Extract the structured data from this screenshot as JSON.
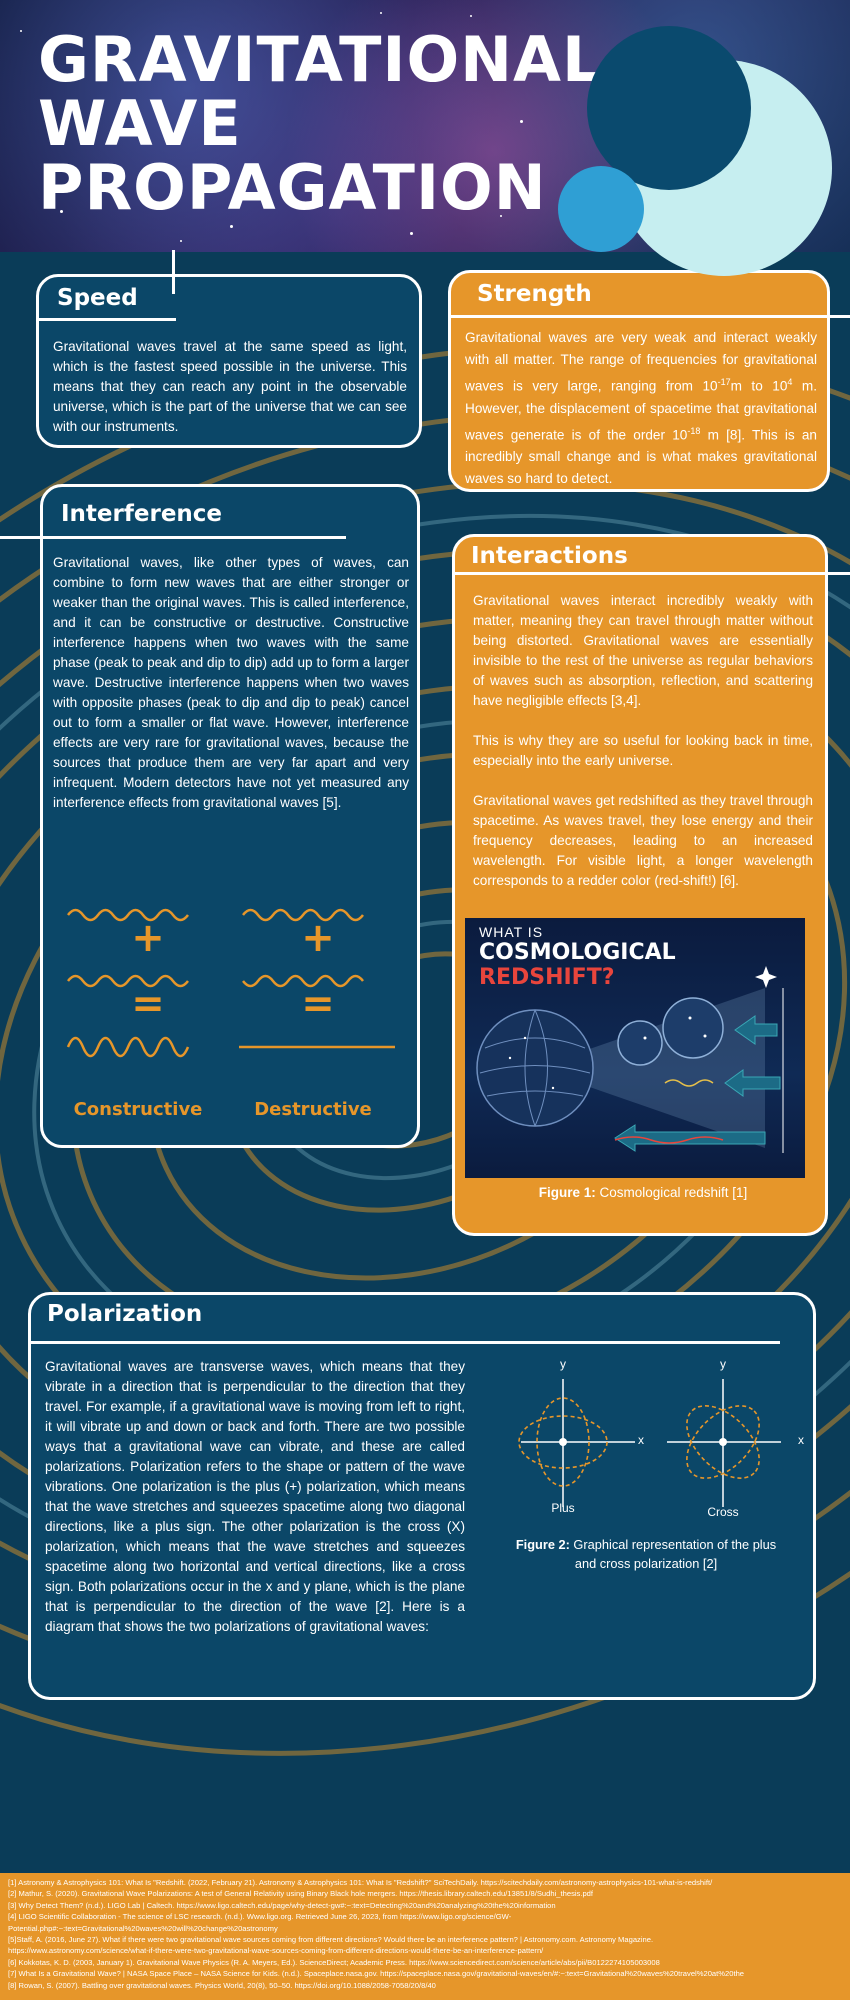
{
  "header": {
    "title_lines": [
      "GRAVITATIONAL",
      "WAVE",
      "PROPAGATION"
    ]
  },
  "colors": {
    "navy": "#0a3c58",
    "card_blue": "#0b4768",
    "orange": "#e6962a",
    "light_cyan": "#c6eef0",
    "bright_blue": "#2f9fd4",
    "swirl": "#c48a2c"
  },
  "speed": {
    "title": "Speed",
    "text": "Gravitational waves travel at the same speed as light, which is the fastest speed possible in the universe. This means that they can reach any point in the observable universe, which is the part of the universe that we can see with our instruments."
  },
  "strength": {
    "title": "Strength",
    "text_a": "Gravitational waves are very weak and interact weakly with all matter. The range of frequencies for gravitational waves is very large, ranging from 10",
    "exp_a": "-17",
    "text_b": "m to 10",
    "exp_b": "4",
    "text_c": " m. However, the displacement of spacetime that gravitational waves generate is of the order 10",
    "exp_c": "-18",
    "text_d": " m [8]. This is an incredibly small change and is what makes gravitational waves so hard to detect."
  },
  "interference": {
    "title": "Interference",
    "text": "Gravitational waves, like other types of waves, can combine to form new waves that are either stronger or weaker than the original waves. This is called interference, and it can be constructive or destructive. Constructive interference happens when two waves with the same phase (peak to peak and dip to dip) add up to form a larger wave. Destructive interference happens when two waves with opposite phases (peak to dip and dip to peak) cancel out to form a smaller or flat wave. However, interference effects are very rare for gravitational waves, because the sources that produce them are very far apart and very infrequent. Modern detectors have not yet measured any interference effects from gravitational waves [5].",
    "plus_symbol": "+",
    "equals_symbol": "=",
    "constructive_label": "Constructive",
    "destructive_label": "Destructive"
  },
  "interactions": {
    "title": "Interactions",
    "paragraphs": [
      "Gravitational waves interact incredibly weakly with matter, meaning they can travel through matter without being distorted. Gravitational waves are essentially invisible to the rest of the universe as regular behaviors of waves such as absorption, reflection, and scattering have negligible effects [3,4].",
      "This is why they are so useful for looking back in time, especially into the early universe.",
      "Gravitational waves get redshifted as they travel through spacetime. As waves travel, they lose energy and their frequency decreases, leading to an increased wavelength. For visible light, a longer wavelength corresponds to a redder color (red-shift!) [6]."
    ],
    "figure_small": "WHAT IS",
    "figure_big_a": "COSMOLOGICAL ",
    "figure_big_b": "REDSHIFT?",
    "figure_label": "Figure 1:",
    "figure_caption": " Cosmological redshift [1]"
  },
  "polarization": {
    "title": "Polarization",
    "text": "Gravitational waves are transverse waves, which means that they vibrate in a direction that is perpendicular to the direction that they travel. For example, if a gravitational wave is moving from left to right, it will vibrate up and down or back and forth. There are two possible ways that a gravitational wave can vibrate, and these are called polarizations. Polarization refers to the shape or pattern of the wave vibrations. One polarization is the plus (+) polarization, which means that the wave stretches and squeezes spacetime along two diagonal directions, like a plus sign. The other polarization is the cross (X) polarization, which means that the wave stretches and squeezes spacetime along two horizontal and vertical directions, like a cross sign. Both polarizations occur in the x and y plane, which is the plane that is perpendicular to the direction of the wave [2]. Here is a diagram that shows the two polarizations of gravitational waves:",
    "axis_x": "x",
    "axis_y": "y",
    "plus_label": "Plus",
    "cross_label": "Cross",
    "figure_label": "Figure 2:",
    "figure_caption": " Graphical representation of the plus and cross polarization [2]"
  },
  "references": [
    "[1] Astronomy & Astrophysics 101: What Is \"Redshift. (2022, February 21). Astronomy & Astrophysics 101: What Is \"Redshift?\" SciTechDaily. https://scitechdaily.com/astronomy-astrophysics-101-what-is-redshift/",
    "[2] Mathur, S. (2020). Gravitational Wave Polarizations: A test of General Relativity using Binary Black hole mergers. https://thesis.library.caltech.edu/13851/8/Sudhi_thesis.pdf",
    "[3] Why Detect Them? (n.d.). LIGO Lab | Caltech. https://www.ligo.caltech.edu/page/why-detect-gw#:~:text=Detecting%20and%20analyzing%20the%20information",
    "[4] LIGO Scientific Collaboration - The science of LSC research. (n.d.). Www.ligo.org. Retrieved June 26, 2023, from https://www.ligo.org/science/GW-",
    "Potential.php#:~:text=Gravitational%20waves%20will%20change%20astronomy",
    "[5]Staff, A. (2016, June 27). What if there were two gravitational wave sources coming from different directions? Would there be an interference pattern? | Astronomy.com. Astronomy Magazine.",
    "https://www.astronomy.com/science/what-if-there-were-two-gravitational-wave-sources-coming-from-different-directions-would-there-be-an-interference-pattern/",
    "[6] Kokkotas, K. D. (2003, January 1). Gravitational Wave Physics (R. A. Meyers, Ed.). ScienceDirect; Academic Press. https://www.sciencedirect.com/science/article/abs/pii/B0122274105003008",
    "[7] What Is a Gravitational Wave? | NASA Space Place – NASA Science for Kids. (n.d.). Spaceplace.nasa.gov. https://spaceplace.nasa.gov/gravitational-waves/en/#:~:text=Gravitational%20waves%20travel%20at%20the",
    "[8] Rowan, S. (2007). Battling over gravitational waves. Physics World, 20(8), 50–50. https://doi.org/10.1088/2058-7058/20/8/40"
  ]
}
